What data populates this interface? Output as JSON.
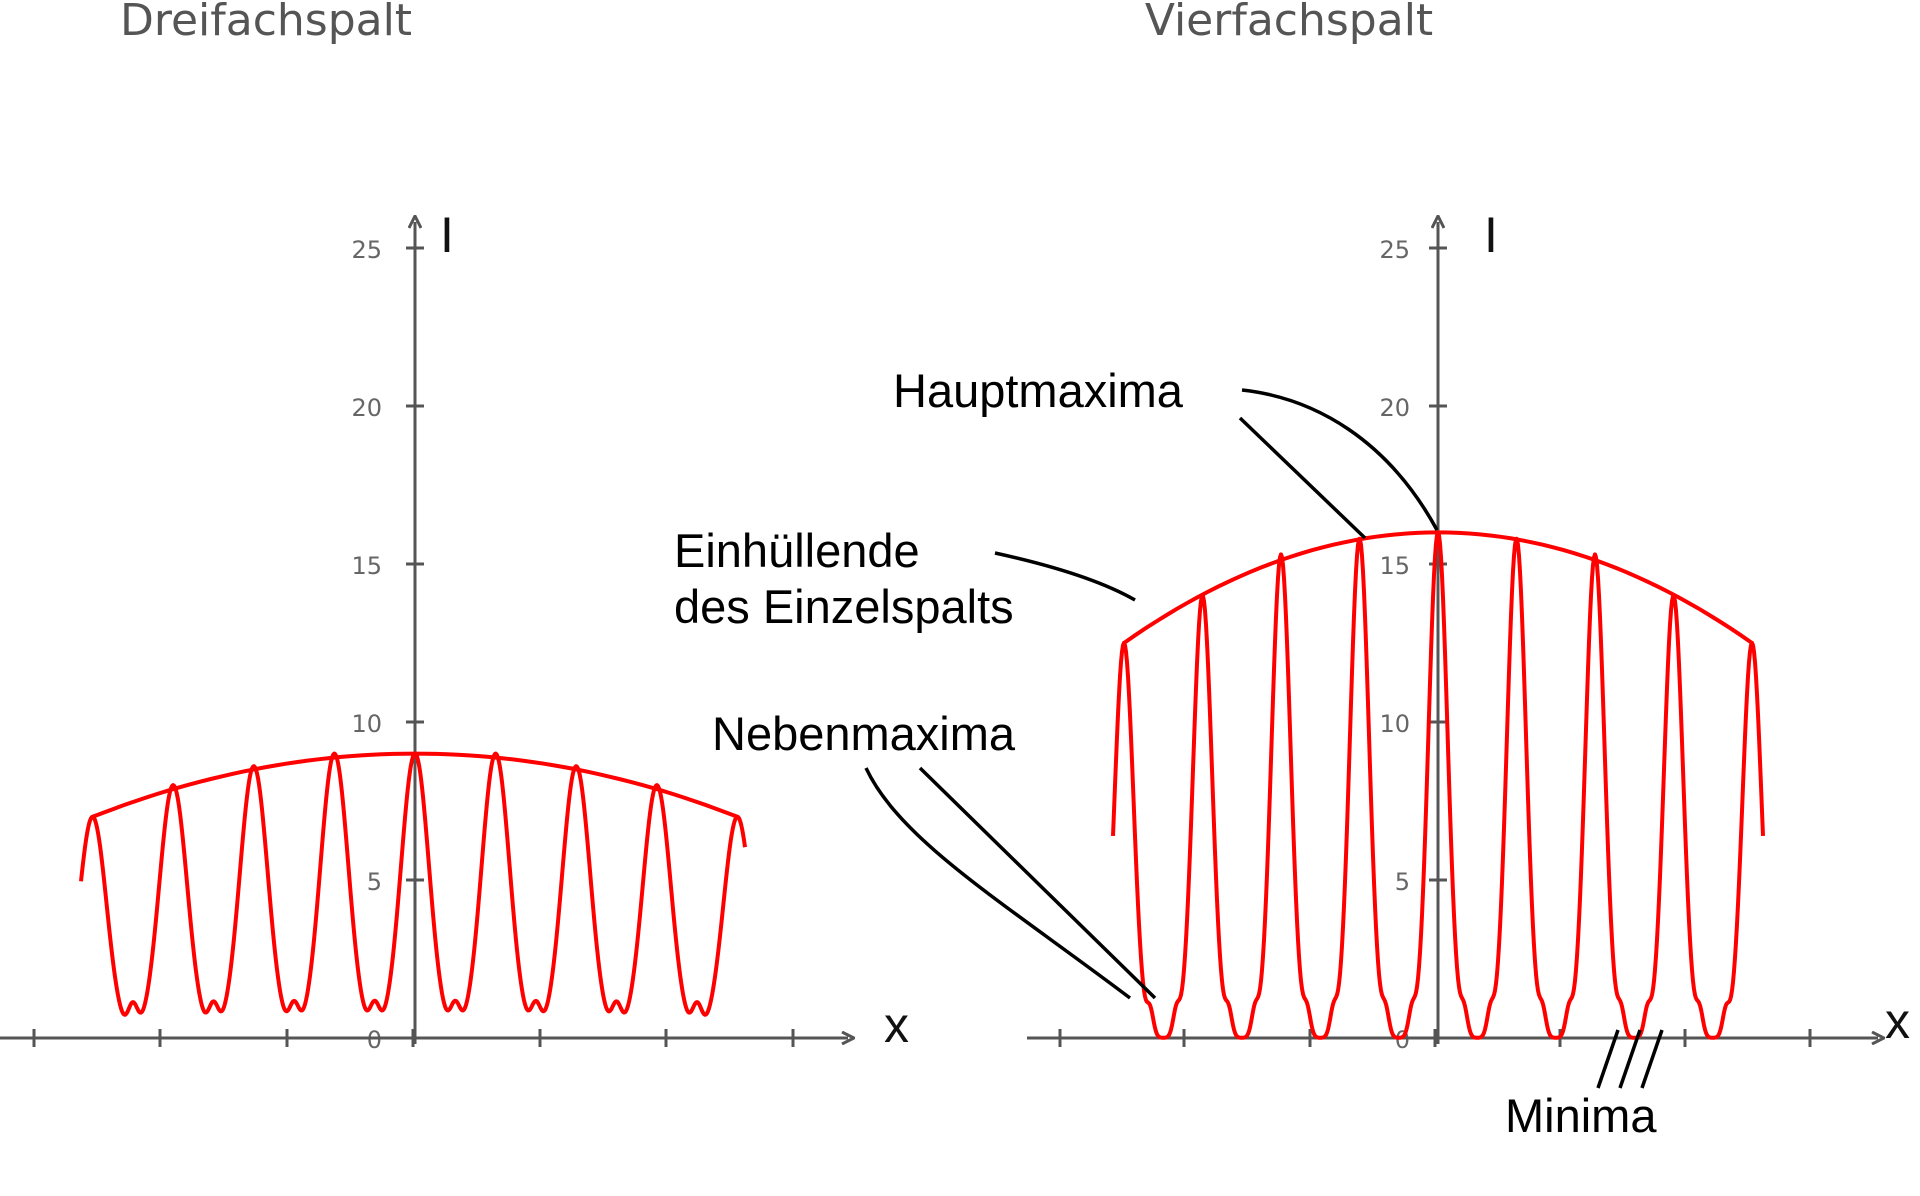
{
  "chart_data": [
    {
      "type": "line",
      "title": "Dreifachspalt",
      "slits": 3,
      "xlabel": "x",
      "ylabel": "I",
      "ylim": [
        0,
        25
      ],
      "yticks": [
        "0",
        "5",
        "10",
        "15",
        "20",
        "25"
      ],
      "envelope_peak": 9,
      "main_maxima": [
        {
          "x": -4,
          "y": 7
        },
        {
          "x": -3,
          "y": 8
        },
        {
          "x": -2,
          "y": 8.6
        },
        {
          "x": -1,
          "y": 9
        },
        {
          "x": 0,
          "y": 9
        },
        {
          "x": 1,
          "y": 9
        },
        {
          "x": 2,
          "y": 8.6
        },
        {
          "x": 3,
          "y": 8
        },
        {
          "x": 4,
          "y": 7
        }
      ]
    },
    {
      "type": "line",
      "title": "Vierfachspalt",
      "slits": 4,
      "xlabel": "x",
      "ylabel": "I",
      "ylim": [
        0,
        25
      ],
      "yticks": [
        "0",
        "5",
        "10",
        "15",
        "20",
        "25"
      ],
      "envelope_peak": 16,
      "main_maxima": [
        {
          "x": -4,
          "y": 12.5
        },
        {
          "x": -3,
          "y": 14
        },
        {
          "x": -2,
          "y": 15.3
        },
        {
          "x": -1,
          "y": 15.8
        },
        {
          "x": 0,
          "y": 16
        },
        {
          "x": 1,
          "y": 15.8
        },
        {
          "x": 2,
          "y": 15.3
        },
        {
          "x": 3,
          "y": 14
        },
        {
          "x": 4,
          "y": 12.5
        }
      ]
    }
  ],
  "annotations": {
    "hauptmaxima": "Hauptmaxima",
    "einhuellende_line1": "Einhüllende",
    "einhuellende_line2": "des Einzelspalts",
    "nebenmaxima": "Nebenmaxima",
    "minima": "Minima"
  },
  "colors": {
    "curve": "#ff0000",
    "axis": "#555555",
    "leader": "#000000"
  }
}
